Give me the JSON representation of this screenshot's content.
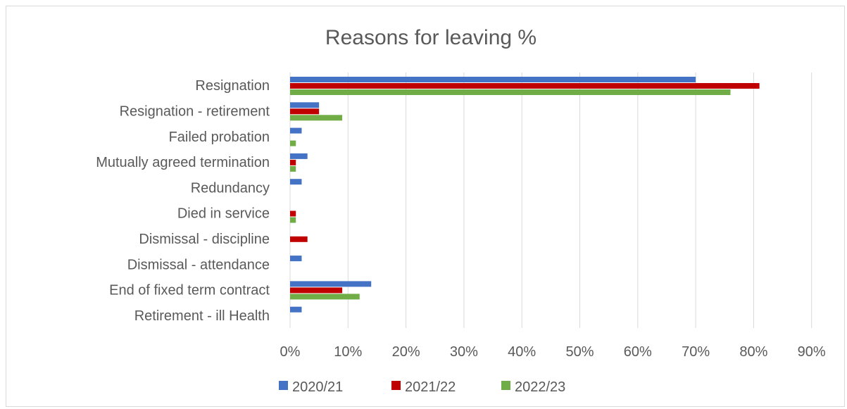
{
  "chart_data": {
    "type": "bar",
    "orientation": "horizontal",
    "title": "Reasons for leaving %",
    "categories": [
      "Resignation",
      "Resignation - retirement",
      "Failed probation",
      "Mutually agreed termination",
      "Redundancy",
      "Died in service",
      "Dismissal - discipline",
      "Dismissal - attendance",
      "End of fixed term contract",
      "Retirement - ill Health"
    ],
    "series": [
      {
        "name": "2020/21",
        "color": "#4472c4",
        "values": [
          70,
          5,
          2,
          3,
          2,
          0,
          0,
          2,
          14,
          2
        ]
      },
      {
        "name": "2021/22",
        "color": "#c00000",
        "values": [
          81,
          5,
          0,
          1,
          0,
          1,
          3,
          0,
          9,
          0
        ]
      },
      {
        "name": "2022/23",
        "color": "#70ad47",
        "values": [
          76,
          9,
          1,
          1,
          0,
          1,
          0,
          0,
          12,
          0
        ]
      }
    ],
    "x_ticks": [
      "0%",
      "10%",
      "20%",
      "30%",
      "40%",
      "50%",
      "60%",
      "70%",
      "80%",
      "90%"
    ],
    "xlim": [
      0,
      90
    ],
    "grid": true,
    "legend": "bottom"
  }
}
